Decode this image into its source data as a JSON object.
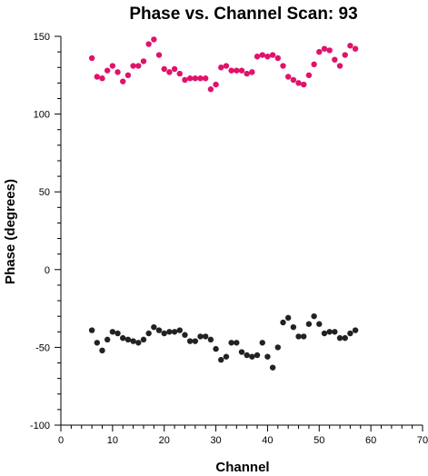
{
  "chart_data": {
    "type": "scatter",
    "title": "Phase vs. Channel Scan: 93",
    "xlabel": "Channel",
    "ylabel": "Phase (degrees)",
    "xlim": [
      0,
      70
    ],
    "ylim": [
      -100,
      150
    ],
    "x_ticks": [
      0,
      10,
      20,
      30,
      40,
      50,
      60,
      70
    ],
    "y_ticks": [
      -100,
      -50,
      0,
      50,
      100,
      150
    ],
    "grid": false,
    "series": [
      {
        "color": "#e0126b",
        "x": [
          6,
          7,
          8,
          9,
          10,
          11,
          12,
          13,
          14,
          15,
          16,
          17,
          18,
          19,
          20,
          21,
          22,
          23,
          24,
          25,
          26,
          27,
          28,
          29,
          30,
          31,
          32,
          33,
          34,
          35,
          36,
          37,
          38,
          39,
          40,
          41,
          42,
          43,
          44,
          45,
          46,
          47,
          48,
          49,
          50,
          51,
          52,
          53,
          54,
          55,
          56,
          57
        ],
        "y": [
          136,
          124,
          123,
          128,
          131,
          127,
          121,
          125,
          131,
          131,
          134,
          145,
          148,
          138,
          129,
          127,
          129,
          126,
          122,
          123,
          123,
          123,
          123,
          116,
          119,
          130,
          131,
          128,
          128,
          128,
          126,
          127,
          137,
          138,
          137,
          138,
          136,
          131,
          124,
          122,
          120,
          119,
          125,
          132,
          140,
          142,
          141,
          135,
          131,
          138,
          144,
          142
        ]
      },
      {
        "color": "#222222",
        "x": [
          6,
          7,
          8,
          9,
          10,
          11,
          12,
          13,
          14,
          15,
          16,
          17,
          18,
          19,
          20,
          21,
          22,
          23,
          24,
          25,
          26,
          27,
          28,
          29,
          30,
          31,
          32,
          33,
          34,
          35,
          36,
          37,
          38,
          39,
          40,
          41,
          42,
          43,
          44,
          45,
          46,
          47,
          48,
          49,
          50,
          51,
          52,
          53,
          54,
          55,
          56,
          57
        ],
        "y": [
          -39,
          -47,
          -52,
          -45,
          -40,
          -41,
          -44,
          -45,
          -46,
          -47,
          -45,
          -41,
          -37,
          -39,
          -41,
          -40,
          -40,
          -39,
          -42,
          -46,
          -46,
          -43,
          -43,
          -45,
          -51,
          -58,
          -56,
          -47,
          -47,
          -53,
          -55,
          -56,
          -55,
          -47,
          -56,
          -63,
          -50,
          -34,
          -31,
          -37,
          -43,
          -43,
          -35,
          -30,
          -35,
          -41,
          -40,
          -40,
          -44,
          -44,
          -41,
          -39
        ]
      }
    ]
  }
}
